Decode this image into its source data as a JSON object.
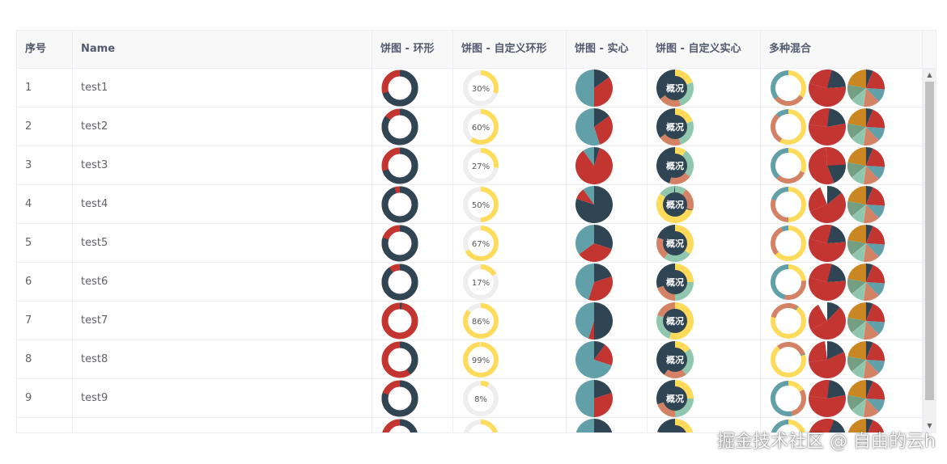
{
  "table": {
    "columns": [
      {
        "key": "index",
        "label": "序号"
      },
      {
        "key": "name",
        "label": "Name"
      },
      {
        "key": "donut",
        "label": "饼图 - 环形"
      },
      {
        "key": "custom_donut",
        "label": "饼图 - 自定义环形"
      },
      {
        "key": "solid",
        "label": "饼图 - 实心"
      },
      {
        "key": "custom_solid",
        "label": "饼图 - 自定义实心"
      },
      {
        "key": "mixed",
        "label": "多种混合"
      }
    ],
    "overview_label": "概况",
    "rows": [
      {
        "index": "1",
        "name": "test1",
        "donut_fraction": 0.7,
        "custom_donut_label": "30%",
        "custom_donut_fraction": 0.3,
        "solid_slices": [
          0.15,
          0.35,
          0.5
        ]
      },
      {
        "index": "2",
        "name": "test2",
        "donut_fraction": 0.85,
        "custom_donut_label": "60%",
        "custom_donut_fraction": 0.6,
        "solid_slices": [
          0.15,
          0.3,
          0.55
        ]
      },
      {
        "index": "3",
        "name": "test3",
        "donut_fraction": 0.7,
        "custom_donut_label": "27%",
        "custom_donut_fraction": 0.27,
        "solid_slices": [
          0.05,
          0.85,
          0.1
        ]
      },
      {
        "index": "4",
        "name": "test4",
        "donut_fraction": 0.95,
        "custom_donut_label": "50%",
        "custom_donut_fraction": 0.5,
        "solid_slices": [
          0.8,
          0.1,
          0.1
        ]
      },
      {
        "index": "5",
        "name": "test5",
        "donut_fraction": 0.8,
        "custom_donut_label": "67%",
        "custom_donut_fraction": 0.67,
        "solid_slices": [
          0.3,
          0.35,
          0.35
        ]
      },
      {
        "index": "6",
        "name": "test6",
        "donut_fraction": 0.9,
        "custom_donut_label": "17%",
        "custom_donut_fraction": 0.17,
        "solid_slices": [
          0.2,
          0.35,
          0.45
        ]
      },
      {
        "index": "7",
        "name": "test7",
        "donut_fraction": 0.02,
        "custom_donut_label": "86%",
        "custom_donut_fraction": 0.86,
        "solid_slices": [
          0.5,
          0.05,
          0.45
        ]
      },
      {
        "index": "8",
        "name": "test8",
        "donut_fraction": 0.4,
        "custom_donut_label": "99%",
        "custom_donut_fraction": 0.99,
        "solid_slices": [
          0.1,
          0.2,
          0.7
        ]
      },
      {
        "index": "9",
        "name": "test9",
        "donut_fraction": 0.8,
        "custom_donut_label": "8%",
        "custom_donut_fraction": 0.08,
        "solid_slices": [
          0.2,
          0.3,
          0.5
        ]
      },
      {
        "index": "",
        "name": "",
        "donut_fraction": 0.6,
        "custom_donut_label": "",
        "custom_donut_fraction": 0.2,
        "solid_slices": [
          0.3,
          0.4,
          0.3
        ]
      }
    ]
  },
  "colors": {
    "dark": "#2f4554",
    "red": "#c23531",
    "teal": "#61a0a8",
    "orange": "#d48265",
    "green": "#91c7ae",
    "olive": "#749f83",
    "gold": "#ca8622",
    "yellow": "#ffdb5c",
    "light_gray": "#eeeeee"
  },
  "watermark": "掘金技术社区 @ 自由的云h",
  "scroll_up_icon": "▲",
  "scroll_down_icon": "▼"
}
